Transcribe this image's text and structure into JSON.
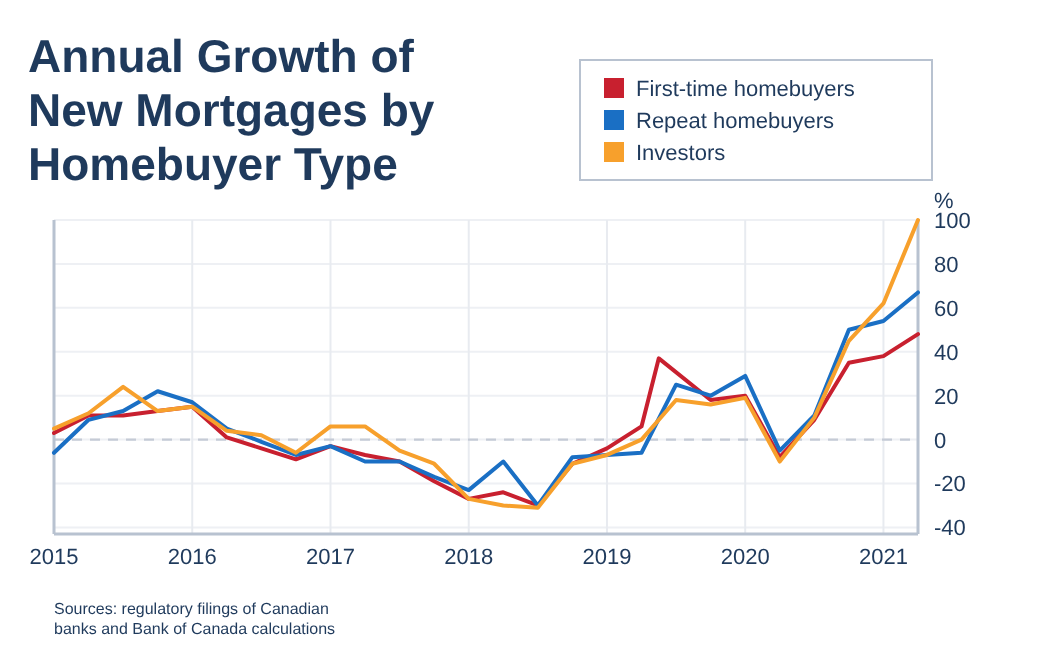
{
  "chart_data": {
    "type": "line",
    "title": "Annual Growth of New Mortgages by Homebuyer Type",
    "ylabel": "%",
    "annotations": [
      "Sources: regulatory filings of Canadian banks and Bank of Canada calculations"
    ],
    "x": [
      2015,
      2015.25,
      2015.5,
      2015.75,
      2016,
      2016.25,
      2016.5,
      2016.75,
      2017,
      2017.25,
      2017.5,
      2017.75,
      2018,
      2018.25,
      2018.5,
      2018.75,
      2019,
      2019.25,
      2019.5,
      2019.75,
      2020,
      2020.25,
      2020.5,
      2020.75,
      2021,
      2021.25
    ],
    "series": [
      {
        "name": "First-time homebuyers",
        "color": "#c8202f",
        "x": [
          2015,
          2015.25,
          2015.5,
          2015.75,
          2016,
          2016.25,
          2016.5,
          2016.75,
          2017,
          2017.25,
          2017.5,
          2017.75,
          2018,
          2018.25,
          2018.5,
          2018.75,
          2019,
          2019.25,
          2019.375,
          2019.75,
          2020,
          2020.25,
          2020.5,
          2020.75,
          2021,
          2021.25
        ],
        "values": [
          3,
          11,
          11,
          13,
          15,
          1,
          -4,
          -9,
          -3,
          -7,
          -10,
          -19,
          -27,
          -24,
          -30,
          -11,
          -4,
          6,
          37,
          18,
          20,
          -8,
          9,
          35,
          38,
          48
        ]
      },
      {
        "name": "Repeat homebuyers",
        "color": "#1a6fc4",
        "values": [
          -6,
          9,
          13,
          22,
          17,
          5,
          -1,
          -7,
          -3,
          -10,
          -10,
          -17,
          -23,
          -10,
          -30,
          -8,
          -7,
          -6,
          25,
          20,
          29,
          -5,
          11,
          50,
          54,
          67
        ]
      },
      {
        "name": "Investors",
        "color": "#f7a02c",
        "values": [
          5,
          12,
          24,
          13,
          15,
          4,
          2,
          -6,
          6,
          6,
          -5,
          -11,
          -27,
          -30,
          -31,
          -11,
          -7,
          0,
          18,
          16,
          19,
          -10,
          10,
          45,
          62,
          100
        ]
      }
    ],
    "xlim": [
      2015,
      2021.25
    ],
    "xticks": [
      2015,
      2016,
      2017,
      2018,
      2019,
      2020,
      2021
    ],
    "ylim": [
      -43,
      100
    ],
    "yticks": [
      -40,
      -20,
      0,
      20,
      40,
      60,
      80,
      100
    ],
    "ref_lines": [
      {
        "axis": "y",
        "value": 0,
        "line_style": "dashed",
        "color": "#c5cbd6"
      }
    ],
    "grid": true,
    "legend": "top right",
    "marker": "none",
    "line_style": "solid"
  }
}
